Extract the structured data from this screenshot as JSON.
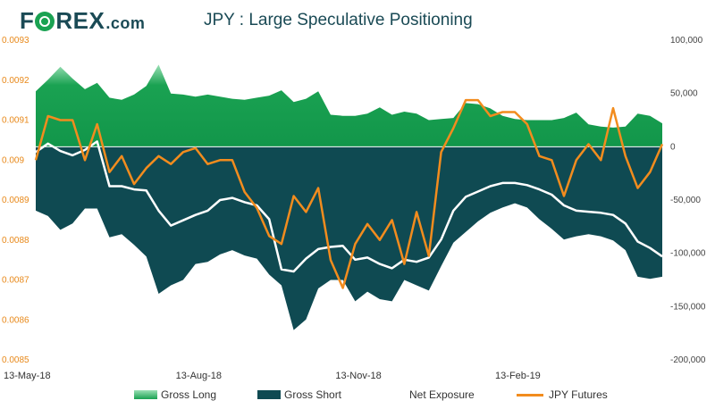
{
  "brand": {
    "name_pre": "F",
    "name_post": "REX",
    "dotcom": ".com"
  },
  "chart_data": {
    "type": "area",
    "title": "JPY : Large Speculative Positioning",
    "x": [
      "13-May-18",
      "20-May-18",
      "27-May-18",
      "3-Jun-18",
      "10-Jun-18",
      "17-Jun-18",
      "24-Jun-18",
      "1-Jul-18",
      "8-Jul-18",
      "15-Jul-18",
      "22-Jul-18",
      "29-Jul-18",
      "5-Aug-18",
      "12-Aug-18",
      "19-Aug-18",
      "26-Aug-18",
      "2-Sep-18",
      "9-Sep-18",
      "16-Sep-18",
      "23-Sep-18",
      "30-Sep-18",
      "7-Oct-18",
      "14-Oct-18",
      "21-Oct-18",
      "28-Oct-18",
      "4-Nov-18",
      "11-Nov-18",
      "18-Nov-18",
      "25-Nov-18",
      "2-Dec-18",
      "9-Dec-18",
      "16-Dec-18",
      "23-Dec-18",
      "30-Dec-18",
      "6-Jan-19",
      "13-Jan-19",
      "20-Jan-19",
      "27-Jan-19",
      "3-Feb-19",
      "10-Feb-19",
      "17-Feb-19",
      "24-Feb-19",
      "3-Mar-19",
      "10-Mar-19",
      "17-Mar-19",
      "24-Mar-19",
      "31-Mar-19",
      "7-Apr-19",
      "14-Apr-19",
      "21-Apr-19",
      "28-Apr-19",
      "5-May-19"
    ],
    "x_tick_labels": [
      "13-May-18",
      "13-Aug-18",
      "13-Nov-18",
      "13-Feb-19"
    ],
    "x_tick_index": [
      0,
      13,
      26,
      39
    ],
    "left_axis": {
      "ylim": [
        0.0085,
        0.0093
      ],
      "ticks": [
        "0.0093",
        "0.0092",
        "0.0091",
        "0.009",
        "0.0089",
        "0.0088",
        "0.0087",
        "0.0086",
        "0.0085"
      ],
      "color": "#e8891a"
    },
    "right_axis": {
      "ylim": [
        -200000,
        100000
      ],
      "ticks": [
        "100,000",
        "50,000",
        "0",
        "-50,000",
        "-100,000",
        "-150,000",
        "-200,000"
      ]
    },
    "series": [
      {
        "name": "Gross Long",
        "axis": "right",
        "color": "#1aa252",
        "values": [
          52000,
          63000,
          75000,
          64000,
          54000,
          60000,
          46000,
          44000,
          49000,
          57000,
          77000,
          50000,
          49000,
          47000,
          49000,
          47000,
          45000,
          44000,
          46000,
          48000,
          53000,
          42000,
          45000,
          52000,
          30000,
          29000,
          29000,
          31000,
          37000,
          30000,
          33000,
          31000,
          25000,
          26000,
          27000,
          41000,
          40000,
          36000,
          29000,
          26000,
          25000,
          25000,
          25000,
          27000,
          32000,
          21000,
          19000,
          18000,
          19000,
          31000,
          29000,
          22000
        ]
      },
      {
        "name": "Gross Short",
        "axis": "right",
        "color": "#0f4a52",
        "values": [
          -60000,
          -65000,
          -78000,
          -72000,
          -58000,
          -58000,
          -85000,
          -82000,
          -92000,
          -103000,
          -138000,
          -130000,
          -125000,
          -110000,
          -108000,
          -101000,
          -97000,
          -102000,
          -105000,
          -120000,
          -130000,
          -172000,
          -162000,
          -133000,
          -125000,
          -125000,
          -145000,
          -136000,
          -143000,
          -145000,
          -125000,
          -130000,
          -135000,
          -112000,
          -90000,
          -80000,
          -70000,
          -62000,
          -57000,
          -53000,
          -57000,
          -68000,
          -77000,
          -87000,
          -84000,
          -82000,
          -84000,
          -88000,
          -97000,
          -122000,
          -124000,
          -122000
        ]
      },
      {
        "name": "Net Exposure",
        "axis": "right",
        "color": "#ffffff",
        "values": [
          -5000,
          3000,
          -4000,
          -8000,
          -3000,
          5000,
          -37000,
          -37000,
          -40000,
          -41000,
          -60000,
          -74000,
          -69000,
          -64000,
          -60000,
          -50000,
          -48000,
          -52000,
          -55000,
          -68000,
          -115000,
          -117000,
          -105000,
          -96000,
          -94000,
          -93000,
          -106000,
          -104000,
          -110000,
          -114000,
          -106000,
          -108000,
          -104000,
          -87000,
          -60000,
          -47000,
          -42000,
          -37000,
          -34000,
          -34000,
          -36000,
          -40000,
          -45000,
          -55000,
          -60000,
          -61000,
          -62000,
          -64000,
          -72000,
          -89000,
          -95000,
          -103000
        ]
      },
      {
        "name": "JPY Futures",
        "axis": "left",
        "color": "#f28c1e",
        "values": [
          0.009,
          0.00911,
          0.0091,
          0.0091,
          0.009,
          0.00909,
          0.00897,
          0.00901,
          0.00894,
          0.00898,
          0.00901,
          0.00899,
          0.00902,
          0.00903,
          0.00899,
          0.009,
          0.009,
          0.00892,
          0.00888,
          0.00881,
          0.00879,
          0.00891,
          0.00887,
          0.00893,
          0.00875,
          0.00868,
          0.00879,
          0.00884,
          0.0088,
          0.00885,
          0.00874,
          0.00887,
          0.00876,
          0.00902,
          0.00908,
          0.00915,
          0.00915,
          0.00911,
          0.00912,
          0.00912,
          0.00909,
          0.00901,
          0.009,
          0.00891,
          0.009,
          0.00904,
          0.009,
          0.00913,
          0.00901,
          0.00893,
          0.00897,
          0.00904
        ]
      }
    ],
    "legend": [
      "Gross Long",
      "Gross Short",
      "Net Exposure",
      "JPY Futures"
    ]
  }
}
